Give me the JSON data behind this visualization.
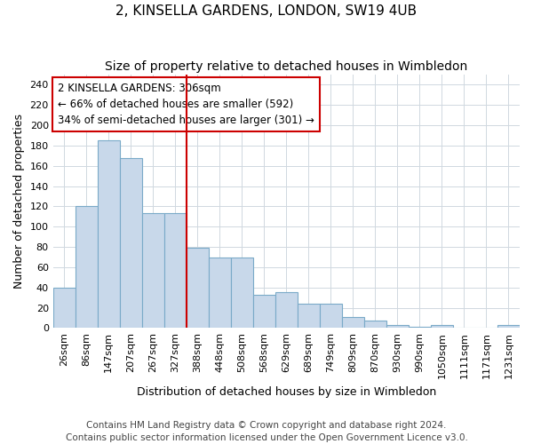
{
  "title1": "2, KINSELLA GARDENS, LONDON, SW19 4UB",
  "title2": "Size of property relative to detached houses in Wimbledon",
  "xlabel": "Distribution of detached houses by size in Wimbledon",
  "ylabel": "Number of detached properties",
  "categories": [
    "26sqm",
    "86sqm",
    "147sqm",
    "207sqm",
    "267sqm",
    "327sqm",
    "388sqm",
    "448sqm",
    "508sqm",
    "568sqm",
    "629sqm",
    "689sqm",
    "749sqm",
    "809sqm",
    "870sqm",
    "930sqm",
    "990sqm",
    "1050sqm",
    "1111sqm",
    "1171sqm",
    "1231sqm"
  ],
  "values": [
    40,
    120,
    185,
    168,
    113,
    113,
    79,
    70,
    70,
    33,
    35,
    24,
    24,
    11,
    7,
    3,
    1,
    3,
    0,
    0,
    3
  ],
  "bar_color": "#c8d8ea",
  "bar_edge_color": "#7aaac8",
  "vline_x": 5.5,
  "vline_color": "#cc0000",
  "annotation_line1": "2 KINSELLA GARDENS: 306sqm",
  "annotation_line2": "← 66% of detached houses are smaller (592)",
  "annotation_line3": "34% of semi-detached houses are larger (301) →",
  "annotation_box_color": "#ffffff",
  "annotation_box_edge": "#cc0000",
  "ylim": [
    0,
    250
  ],
  "yticks": [
    0,
    20,
    40,
    60,
    80,
    100,
    120,
    140,
    160,
    180,
    200,
    220,
    240
  ],
  "footer1": "Contains HM Land Registry data © Crown copyright and database right 2024.",
  "footer2": "Contains public sector information licensed under the Open Government Licence v3.0.",
  "bg_color": "#ffffff",
  "plot_bg_color": "#ffffff",
  "title1_fontsize": 11,
  "title2_fontsize": 10,
  "xlabel_fontsize": 9,
  "ylabel_fontsize": 9,
  "tick_fontsize": 8,
  "annotation_fontsize": 8.5,
  "footer_fontsize": 7.5
}
